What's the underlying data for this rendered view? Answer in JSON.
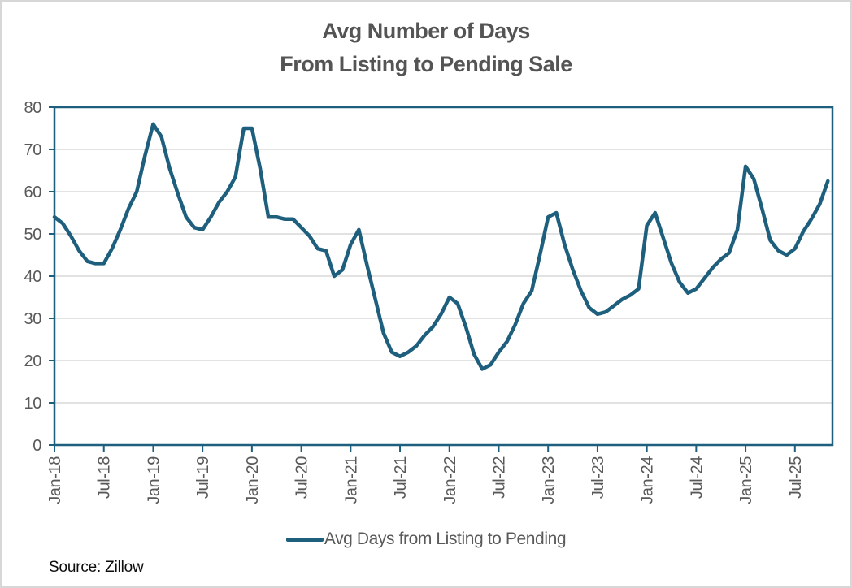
{
  "title": {
    "line1": "Avg Number of Days",
    "line2": "From Listing to Pending Sale"
  },
  "legend": {
    "label": "Avg Days from Listing to Pending"
  },
  "source": "Source: Zillow",
  "colors": {
    "line": "#1e5f7d",
    "frame": "#1e5f7d",
    "grid": "#d9d9d9",
    "axis_text": "#595959",
    "title_text": "#545454",
    "source_text": "#0d0d0d"
  },
  "chart_data": {
    "type": "line",
    "title": "Avg Number of Days From Listing to Pending Sale",
    "xlabel": "",
    "ylabel": "",
    "ylim": [
      0,
      80
    ],
    "ytick_step": 10,
    "grid": "horizontal",
    "legend_position": "bottom",
    "x_tick_labels": [
      "Jan-18",
      "Jul-18",
      "Jan-19",
      "Jul-19",
      "Jan-20",
      "Jul-20",
      "Jan-21",
      "Jul-21",
      "Jan-22",
      "Jul-22",
      "Jan-23",
      "Jul-23",
      "Jan-24",
      "Jul-24",
      "Jan-25",
      "Jul-25"
    ],
    "x_tick_every_months": 6,
    "series": [
      {
        "name": "Avg Days from Listing to Pending",
        "frequency": "monthly",
        "months": [
          "Jan-18",
          "Feb-18",
          "Mar-18",
          "Apr-18",
          "May-18",
          "Jun-18",
          "Jul-18",
          "Aug-18",
          "Sep-18",
          "Oct-18",
          "Nov-18",
          "Dec-18",
          "Jan-19",
          "Feb-19",
          "Mar-19",
          "Apr-19",
          "May-19",
          "Jun-19",
          "Jul-19",
          "Aug-19",
          "Sep-19",
          "Oct-19",
          "Nov-19",
          "Dec-19",
          "Jan-20",
          "Feb-20",
          "Mar-20",
          "Apr-20",
          "May-20",
          "Jun-20",
          "Jul-20",
          "Aug-20",
          "Sep-20",
          "Oct-20",
          "Nov-20",
          "Dec-20",
          "Jan-21",
          "Feb-21",
          "Mar-21",
          "Apr-21",
          "May-21",
          "Jun-21",
          "Jul-21",
          "Aug-21",
          "Sep-21",
          "Oct-21",
          "Nov-21",
          "Dec-21",
          "Jan-22",
          "Feb-22",
          "Mar-22",
          "Apr-22",
          "May-22",
          "Jun-22",
          "Jul-22",
          "Aug-22",
          "Sep-22",
          "Oct-22",
          "Nov-22",
          "Dec-22",
          "Jan-23",
          "Feb-23",
          "Mar-23",
          "Apr-23",
          "May-23",
          "Jun-23",
          "Jul-23",
          "Aug-23",
          "Sep-23",
          "Oct-23",
          "Nov-23",
          "Dec-23",
          "Jan-24",
          "Feb-24",
          "Mar-24",
          "Apr-24",
          "May-24",
          "Jun-24",
          "Jul-24",
          "Aug-24",
          "Sep-24",
          "Oct-24",
          "Nov-24",
          "Dec-24",
          "Jan-25",
          "Feb-25",
          "Mar-25",
          "Apr-25",
          "May-25",
          "Jun-25",
          "Jul-25",
          "Aug-25",
          "Sep-25",
          "Oct-25",
          "Nov-25"
        ],
        "values": [
          54,
          52.5,
          49.5,
          46,
          43.5,
          43,
          43,
          46.5,
          51,
          56,
          60,
          68.5,
          76,
          73,
          65.5,
          59.5,
          54,
          51.5,
          51,
          54,
          57.5,
          60,
          63.5,
          75,
          75,
          65.5,
          54,
          54,
          53.5,
          53.5,
          51.5,
          49.5,
          46.5,
          46,
          40,
          41.5,
          47.5,
          51,
          42.5,
          34.5,
          26.5,
          22,
          21,
          22,
          23.5,
          26,
          28,
          31,
          35,
          33.5,
          28,
          21.5,
          18,
          19,
          22,
          24.5,
          28.5,
          33.5,
          36.5,
          45,
          54,
          55,
          47.5,
          41.5,
          36.5,
          32.5,
          31,
          31.5,
          33,
          34.5,
          35.5,
          37,
          52,
          55,
          49,
          43,
          38.5,
          36,
          37,
          39.5,
          42,
          44,
          45.5,
          51,
          66,
          63,
          56,
          48.5,
          46,
          45,
          46.5,
          50.5,
          53.5,
          57,
          62.5
        ]
      }
    ]
  }
}
